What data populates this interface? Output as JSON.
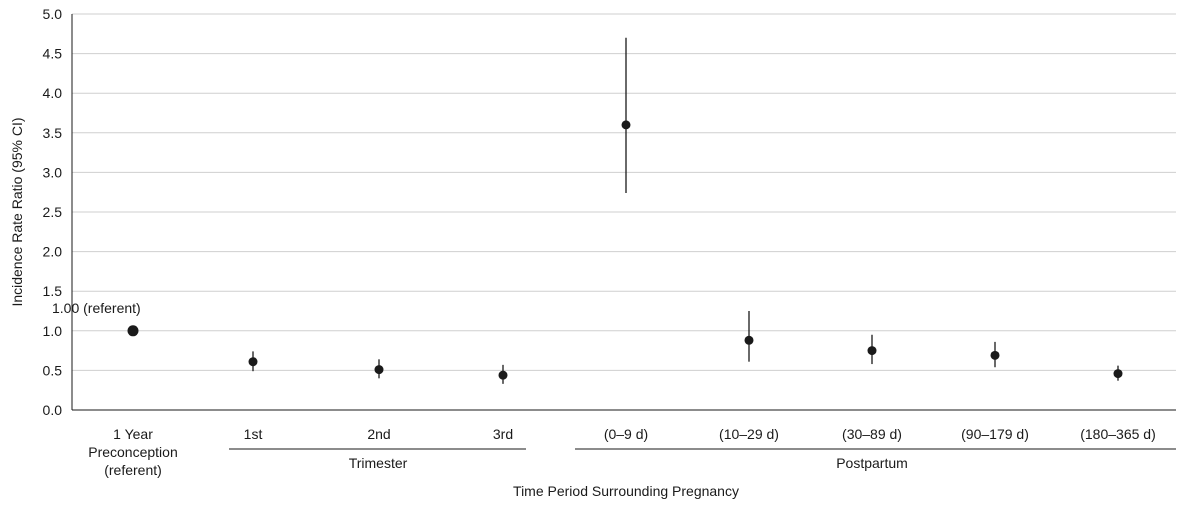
{
  "chart_data": {
    "type": "scatter",
    "xlabel": "Time Period Surrounding Pregnancy",
    "ylabel": "Incidence Rate Ratio (95% CI)",
    "ylim": [
      0,
      5
    ],
    "yticks": [
      "0.0",
      "0.5",
      "1.0",
      "1.5",
      "2.0",
      "2.5",
      "3.0",
      "3.5",
      "4.0",
      "4.5",
      "5.0"
    ],
    "grid": true,
    "categories": [
      [
        "1 Year",
        "Preconception",
        "(referent)"
      ],
      [
        "1st"
      ],
      [
        "2nd"
      ],
      [
        "3rd"
      ],
      [
        "(0–9 d)"
      ],
      [
        "(10–29 d)"
      ],
      [
        "(30–89 d)"
      ],
      [
        "(90–179 d)"
      ],
      [
        "(180–365 d)"
      ]
    ],
    "points": [
      {
        "value": 1.0,
        "lower": null,
        "upper": null
      },
      {
        "value": 0.61,
        "lower": 0.49,
        "upper": 0.74
      },
      {
        "value": 0.51,
        "lower": 0.4,
        "upper": 0.64
      },
      {
        "value": 0.44,
        "lower": 0.33,
        "upper": 0.57
      },
      {
        "value": 3.6,
        "lower": 2.74,
        "upper": 4.7
      },
      {
        "value": 0.88,
        "lower": 0.61,
        "upper": 1.25
      },
      {
        "value": 0.75,
        "lower": 0.58,
        "upper": 0.95
      },
      {
        "value": 0.69,
        "lower": 0.54,
        "upper": 0.86
      },
      {
        "value": 0.46,
        "lower": 0.37,
        "upper": 0.56
      }
    ],
    "groups": [
      {
        "label": "Trimester",
        "first": 1,
        "last": 3
      },
      {
        "label": "Postpartum",
        "first": 4,
        "last": 8
      }
    ],
    "annotation": {
      "text": "1.00 (referent)",
      "point": 0
    },
    "colors": {
      "marker": "#1a1a1a",
      "grid": "#cfcfcf",
      "axis": "#1a1a1a"
    }
  }
}
